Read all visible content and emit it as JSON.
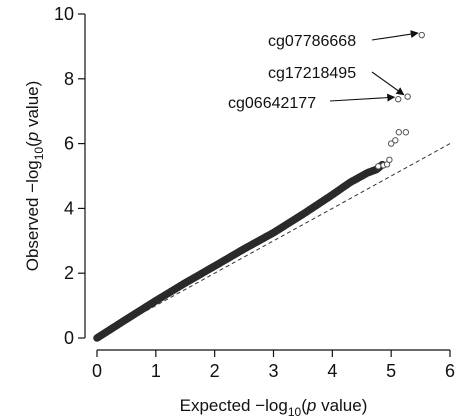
{
  "chart_data": {
    "type": "scatter",
    "title": "",
    "xlabel": {
      "pre": "Expected −log",
      "sub": "10",
      "post_open": "(",
      "italic": "p",
      "post": " value)"
    },
    "ylabel": {
      "pre": "Observed −log",
      "sub": "10",
      "post_open": "(",
      "italic": "p",
      "post": " value)"
    },
    "xlim": [
      0,
      6
    ],
    "ylim": [
      0,
      10
    ],
    "xticks": [
      0,
      1,
      2,
      3,
      4,
      5,
      6
    ],
    "yticks": [
      0,
      2,
      4,
      6,
      8,
      10
    ],
    "x_tick_labels": [
      "0",
      "1",
      "2",
      "3",
      "4",
      "5",
      "6"
    ],
    "y_tick_labels": [
      "0",
      "2",
      "4",
      "6",
      "8",
      "10"
    ],
    "grid": false,
    "reference_line": {
      "slope": 1,
      "intercept": 0,
      "style": "dashed"
    },
    "colors": {
      "points": "#2a2a2a",
      "line": "#333333",
      "axis": "#111111"
    },
    "qq_curve": {
      "x": [
        0.0,
        0.5,
        1.0,
        1.5,
        2.0,
        2.5,
        3.0,
        3.5,
        4.0,
        4.3,
        4.5,
        4.6,
        4.75,
        4.85
      ],
      "y": [
        0.0,
        0.58,
        1.15,
        1.7,
        2.22,
        2.75,
        3.25,
        3.82,
        4.42,
        4.8,
        5.0,
        5.1,
        5.2,
        5.35
      ]
    },
    "tail_points": [
      {
        "x": 4.78,
        "y": 5.3
      },
      {
        "x": 4.87,
        "y": 5.33
      },
      {
        "x": 4.93,
        "y": 5.36
      },
      {
        "x": 4.97,
        "y": 5.5
      },
      {
        "x": 5.0,
        "y": 6.0
      },
      {
        "x": 5.07,
        "y": 6.1
      },
      {
        "x": 5.13,
        "y": 6.35
      },
      {
        "x": 5.25,
        "y": 6.35
      },
      {
        "x": 5.12,
        "y": 7.37
      },
      {
        "x": 5.28,
        "y": 7.45
      },
      {
        "x": 5.52,
        "y": 9.35
      }
    ],
    "annotations": [
      {
        "label": "cg07786668",
        "x": 5.52,
        "y": 9.35
      },
      {
        "label": "cg17218495",
        "x": 5.28,
        "y": 7.45
      },
      {
        "label": "cg06642177",
        "x": 5.12,
        "y": 7.37
      }
    ]
  }
}
